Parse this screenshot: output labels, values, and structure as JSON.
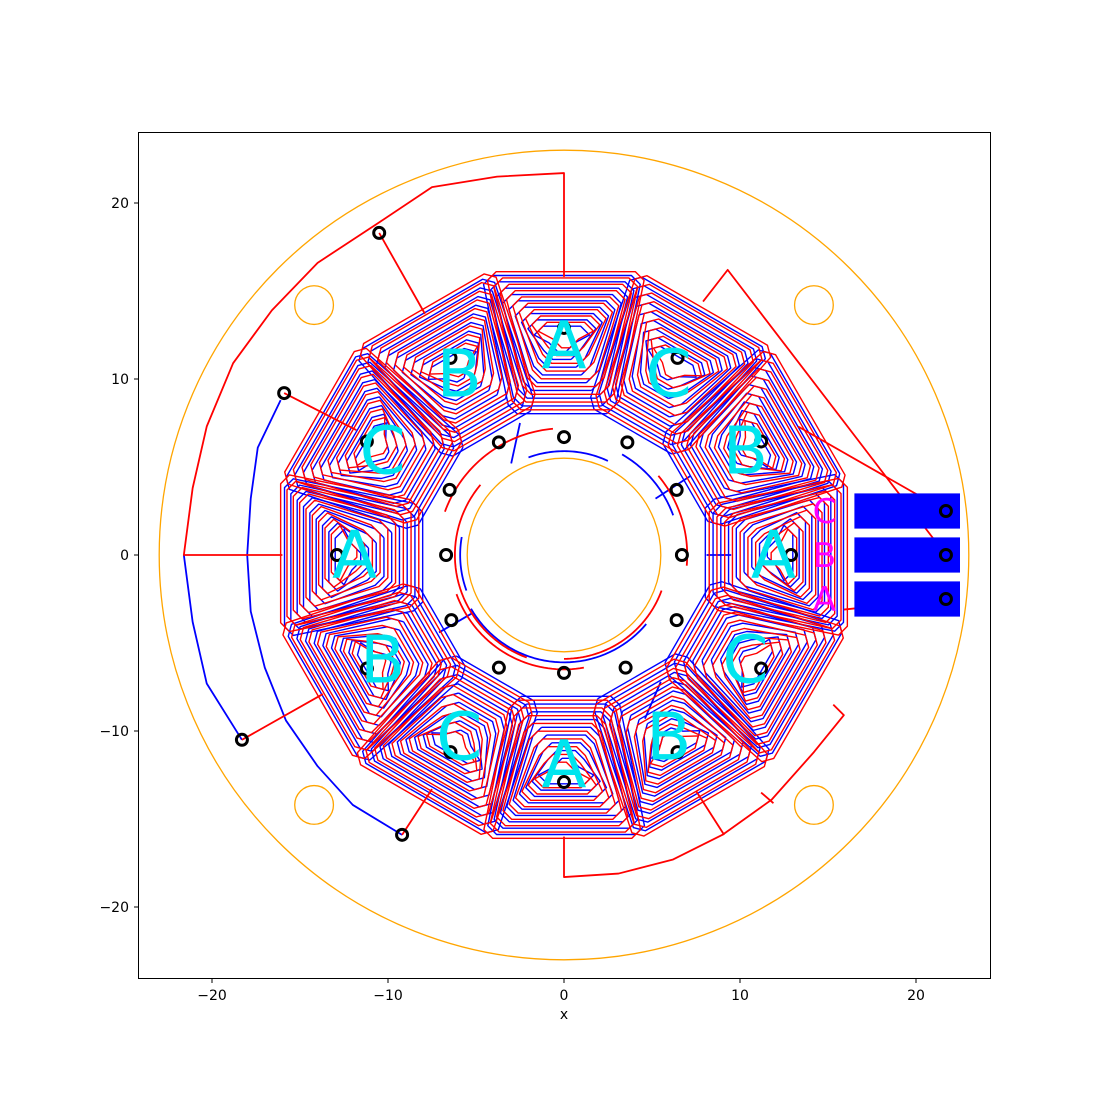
{
  "plot": {
    "xlabel": "x",
    "xlim": [
      -24.2,
      24.2
    ],
    "ylim": [
      -24.2,
      24.2
    ],
    "xticks": [
      -20,
      -10,
      0,
      10,
      20
    ],
    "yticks": [
      -20,
      -10,
      0,
      10,
      20
    ],
    "xtick_labels": [
      "−20",
      "−10",
      "0",
      "10",
      "20"
    ],
    "ytick_labels": [
      "−20",
      "−10",
      "0",
      "10",
      "20"
    ]
  },
  "colors": {
    "outline": "#ffa500",
    "front_trace": "#ff0000",
    "back_trace": "#0000ff",
    "coil_label": "#00e5ee",
    "pad": "#0000ff",
    "pad_label": "#ff00ff",
    "via": "#000000"
  },
  "board": {
    "outer_radius": 23,
    "inner_radius": 5.5,
    "mount_holes": [
      {
        "x": -14.2,
        "y": 14.2,
        "r": 1.1
      },
      {
        "x": 14.2,
        "y": 14.2,
        "r": 1.1
      },
      {
        "x": -14.2,
        "y": -14.2,
        "r": 1.1
      },
      {
        "x": 14.2,
        "y": -14.2,
        "r": 1.1
      }
    ]
  },
  "coils": [
    {
      "angle": 90,
      "label": "A"
    },
    {
      "angle": 60,
      "label": "C"
    },
    {
      "angle": 30,
      "label": "B"
    },
    {
      "angle": 0,
      "label": "A"
    },
    {
      "angle": -30,
      "label": "C"
    },
    {
      "angle": -60,
      "label": "B"
    },
    {
      "angle": -90,
      "label": "A"
    },
    {
      "angle": -120,
      "label": "C"
    },
    {
      "angle": -150,
      "label": "B"
    },
    {
      "angle": 180,
      "label": "A"
    },
    {
      "angle": 150,
      "label": "C"
    },
    {
      "angle": 120,
      "label": "B"
    }
  ],
  "pads": [
    {
      "x": 19.5,
      "y": 2.5,
      "label": "C"
    },
    {
      "x": 19.5,
      "y": 0,
      "label": "B"
    },
    {
      "x": 19.5,
      "y": -2.5,
      "label": "A"
    }
  ],
  "vias": [
    {
      "x": 0,
      "y": 12.9
    },
    {
      "x": 0,
      "y": 6.7
    },
    {
      "x": 6.45,
      "y": 11.2
    },
    {
      "x": 3.6,
      "y": 6.4
    },
    {
      "x": 11.2,
      "y": 6.45
    },
    {
      "x": 6.4,
      "y": 3.7
    },
    {
      "x": 12.9,
      "y": 0
    },
    {
      "x": 6.7,
      "y": 0
    },
    {
      "x": 11.2,
      "y": -6.45
    },
    {
      "x": 6.4,
      "y": -3.7
    },
    {
      "x": 6.45,
      "y": -11.2
    },
    {
      "x": 3.5,
      "y": -6.4
    },
    {
      "x": 0,
      "y": -12.9
    },
    {
      "x": 0,
      "y": -6.7
    },
    {
      "x": -6.45,
      "y": -11.2
    },
    {
      "x": -3.7,
      "y": -6.4
    },
    {
      "x": -11.2,
      "y": -6.45
    },
    {
      "x": -6.4,
      "y": -3.7
    },
    {
      "x": -12.9,
      "y": 0
    },
    {
      "x": -6.7,
      "y": 0
    },
    {
      "x": -11.2,
      "y": 6.45
    },
    {
      "x": -6.5,
      "y": 3.7
    },
    {
      "x": -6.45,
      "y": 11.2
    },
    {
      "x": -3.7,
      "y": 6.4
    },
    {
      "x": -10.5,
      "y": 18.3
    },
    {
      "x": -15.9,
      "y": 9.2
    },
    {
      "x": -18.3,
      "y": -10.5
    },
    {
      "x": -9.2,
      "y": -15.9
    },
    {
      "x": 21.7,
      "y": 2.5
    },
    {
      "x": 21.7,
      "y": 0
    },
    {
      "x": 21.7,
      "y": -2.5
    }
  ],
  "front_traces": [
    [
      [
        0,
        15.8
      ],
      [
        0,
        21.7
      ],
      [
        -3.8,
        21.5
      ],
      [
        -7.5,
        20.9
      ],
      [
        -10.5,
        18.9
      ],
      [
        -14,
        16.6
      ],
      [
        -16.6,
        13.9
      ],
      [
        -18.8,
        10.9
      ],
      [
        -20.3,
        7.3
      ],
      [
        -21.1,
        3.8
      ],
      [
        -21.6,
        0
      ],
      [
        -16,
        0
      ]
    ],
    [
      [
        -10.5,
        18.3
      ],
      [
        -7.9,
        13.7
      ]
    ],
    [
      [
        -15.9,
        9.2
      ],
      [
        -11.8,
        7.1
      ]
    ],
    [
      [
        -18.3,
        -10.5
      ],
      [
        -13.7,
        -7.9
      ]
    ],
    [
      [
        -9.2,
        -15.9
      ],
      [
        -7.5,
        -13.3
      ]
    ],
    [
      [
        21.7,
        2.5
      ],
      [
        13.3,
        7.3
      ]
    ],
    [
      [
        21.7,
        0
      ],
      [
        9.3,
        16.2
      ],
      [
        7.9,
        14.4
      ]
    ],
    [
      [
        21.7,
        -2.5
      ],
      [
        15.9,
        -3.1
      ]
    ],
    [
      [
        0,
        -16
      ],
      [
        0,
        -18.3
      ],
      [
        3.1,
        -18.1
      ],
      [
        6.2,
        -17.3
      ],
      [
        9,
        -15.9
      ],
      [
        11.8,
        -13.9
      ],
      [
        14.2,
        -11.2
      ],
      [
        15.9,
        -9.1
      ],
      [
        15.3,
        -8.5
      ]
    ],
    [
      [
        9.1,
        -15.9
      ],
      [
        7.5,
        -13.4
      ]
    ],
    [
      [
        11.9,
        -14.1
      ],
      [
        11.2,
        -13.5
      ]
    ]
  ],
  "back_traces": [
    [
      [
        -9.2,
        -15.9
      ],
      [
        -12,
        -14.2
      ],
      [
        -14,
        -12
      ],
      [
        -15.8,
        -9.4
      ],
      [
        -17,
        -6.4
      ],
      [
        -17.8,
        -3.2
      ],
      [
        -18,
        0
      ],
      [
        -17.8,
        3.2
      ],
      [
        -17.4,
        6.1
      ],
      [
        -16.1,
        8.8
      ]
    ],
    [
      [
        -18.3,
        -10.5
      ],
      [
        -20.3,
        -7.3
      ],
      [
        -21.1,
        -3.8
      ],
      [
        -21.6,
        0
      ]
    ],
    [
      [
        5.2,
        3.2
      ],
      [
        7.2,
        4.5
      ]
    ],
    [
      [
        -3,
        5.2
      ],
      [
        -2.5,
        7.5
      ]
    ],
    [
      [
        8.1,
        0
      ],
      [
        9.5,
        0
      ]
    ],
    [
      [
        5.5,
        -7.2
      ],
      [
        4.6,
        -9.3
      ]
    ],
    [
      [
        -5.2,
        -3.3
      ],
      [
        -7.1,
        -4.4
      ]
    ]
  ],
  "front_arcs": [
    {
      "r": 5.9,
      "start": -90,
      "end": -20
    },
    {
      "r": 6.2,
      "start": 140,
      "end": 250
    },
    {
      "r": 7.2,
      "start": 95,
      "end": 160
    },
    {
      "r": 7,
      "start": -5,
      "end": 40
    },
    {
      "r": 6.5,
      "start": 200,
      "end": 280
    }
  ],
  "back_arcs": [
    {
      "r": 6.1,
      "start": 210,
      "end": 320
    },
    {
      "r": 5.9,
      "start": 65,
      "end": 110
    },
    {
      "r": 6.6,
      "start": 20,
      "end": 60
    },
    {
      "r": 5.9,
      "start": 170,
      "end": 200
    }
  ]
}
